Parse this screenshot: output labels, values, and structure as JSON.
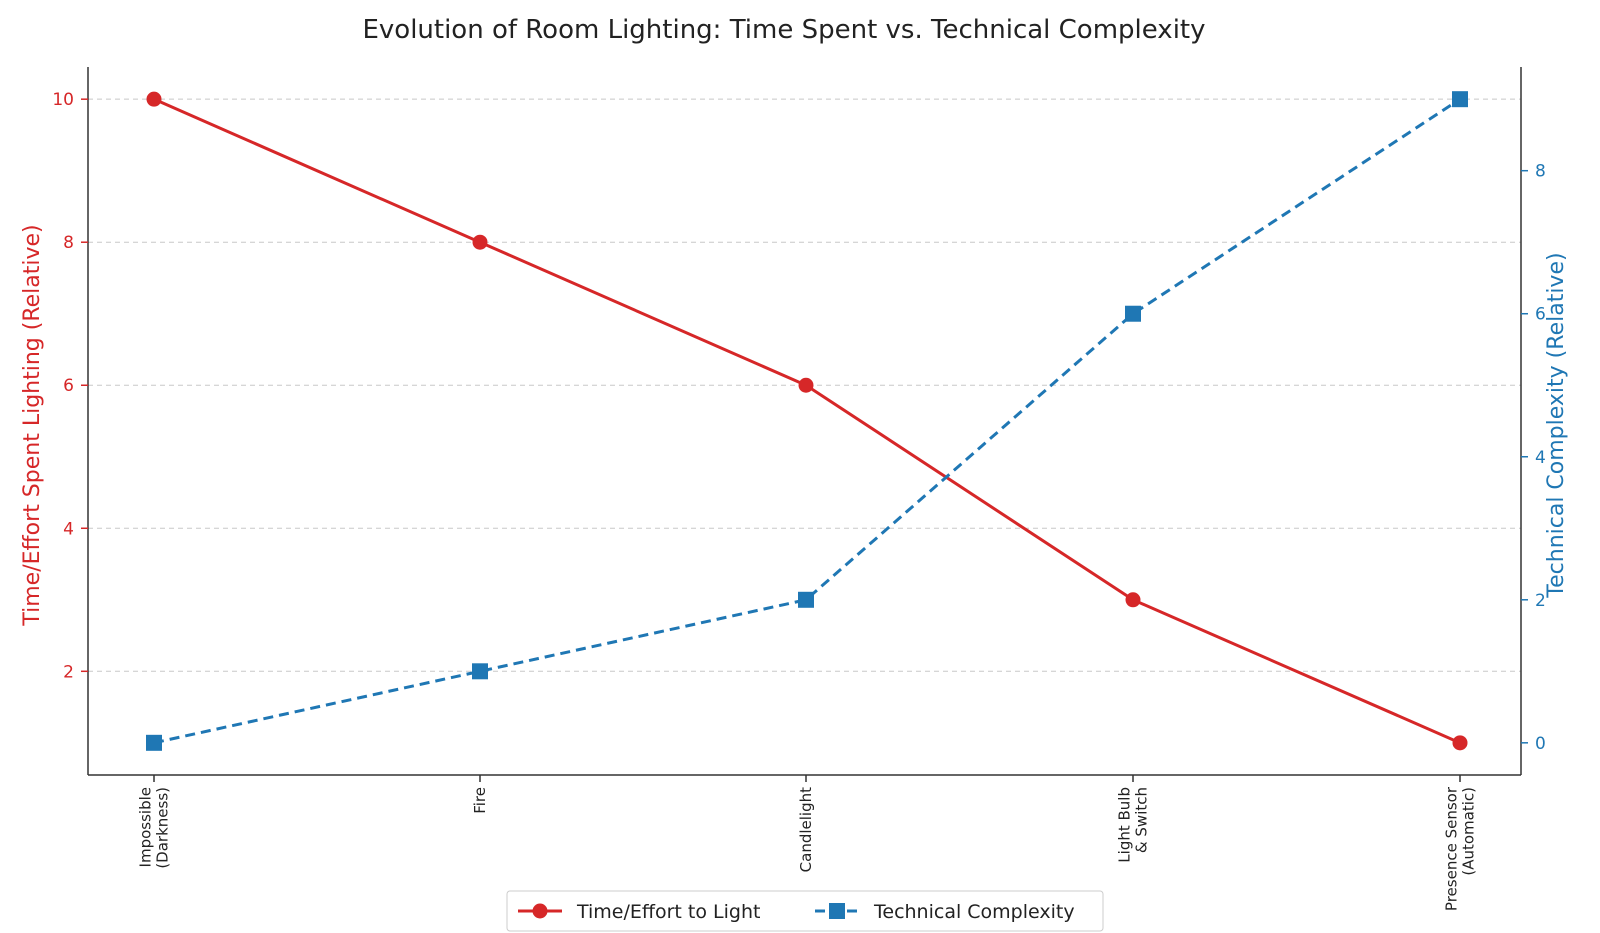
{
  "chart_data": {
    "type": "line",
    "title": "Evolution of Room Lighting: Time Spent vs. Technical Complexity",
    "categories": [
      [
        "Impossible",
        "(Darkness)"
      ],
      [
        "Fire"
      ],
      [
        "Candlelight"
      ],
      [
        "Light Bulb",
        "& Switch"
      ],
      [
        "Presence Sensor",
        "(Automatic)"
      ]
    ],
    "y_left": {
      "label": "Time/Effort Spent Lighting (Relative)",
      "ticks": [
        2,
        4,
        6,
        8,
        10
      ],
      "range": [
        0.55,
        10.45
      ],
      "color": "#d62728"
    },
    "y_right": {
      "label": "Technical Complexity (Relative)",
      "ticks": [
        0,
        2,
        4,
        6,
        8
      ],
      "range": [
        -0.45,
        9.45
      ],
      "color": "#1f77b4"
    },
    "grid": "horizontal dashed",
    "legend_position": "bottom-center",
    "series": [
      {
        "name": "Time/Effort to Light",
        "axis": "left",
        "values": [
          10,
          8,
          6,
          3,
          1
        ],
        "color": "#d62728",
        "line_style": "solid",
        "marker": "circle"
      },
      {
        "name": "Technical Complexity",
        "axis": "right",
        "values": [
          0,
          1,
          2,
          6,
          9
        ],
        "color": "#1f77b4",
        "line_style": "dashed",
        "marker": "square"
      }
    ]
  }
}
